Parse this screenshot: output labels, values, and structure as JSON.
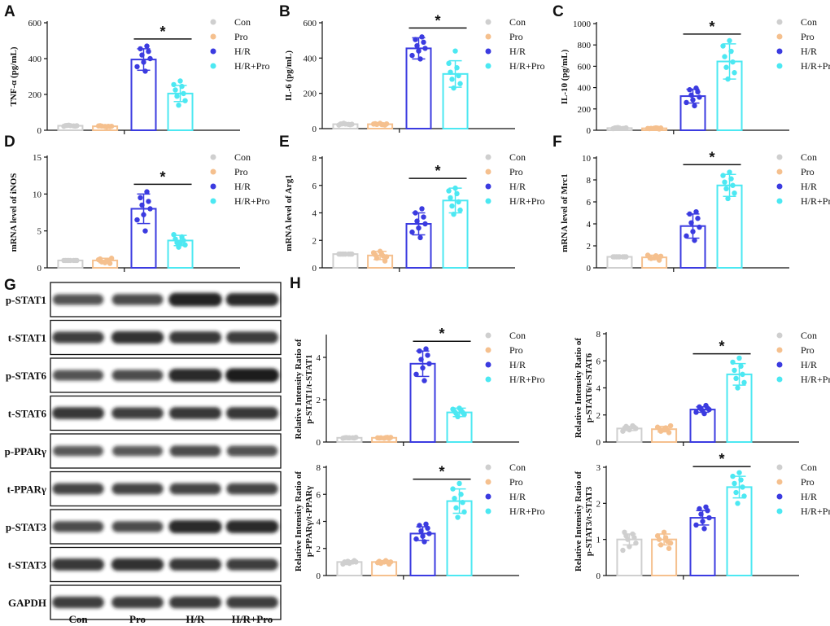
{
  "group_colors": [
    "#cfcfcf",
    "#f5c08e",
    "#3b3be0",
    "#4ce8f2"
  ],
  "chart_data": [
    {
      "id": "A",
      "type": "bar",
      "panel_label": "A",
      "ylabel": "TNF-α (pg/mL)",
      "ylim": [
        0,
        600
      ],
      "yticks": [
        "0",
        "200",
        "400",
        "600"
      ],
      "categories": [
        "Con",
        "Pro",
        "H/R",
        "H/R+Pro"
      ],
      "values": [
        25,
        22,
        395,
        205
      ],
      "errors": [
        4,
        4,
        60,
        45
      ],
      "points": [
        [
          22,
          26,
          25,
          28,
          23,
          27,
          24,
          26
        ],
        [
          20,
          23,
          22,
          25,
          19,
          24,
          21,
          22
        ],
        [
          330,
          355,
          380,
          400,
          420,
          440,
          455,
          470
        ],
        [
          140,
          165,
          190,
          205,
          225,
          245,
          255,
          275
        ]
      ],
      "legend": [
        "Con",
        "Pro",
        "H/R",
        "H/R+Pro"
      ],
      "significance": "*",
      "sig_pair": [
        2,
        3
      ]
    },
    {
      "id": "B",
      "type": "bar",
      "panel_label": "B",
      "ylabel": "IL-6 (pg/mL)",
      "ylim": [
        0,
        600
      ],
      "yticks": [
        "0",
        "200",
        "400",
        "600"
      ],
      "categories": [
        "Con",
        "Pro",
        "H/R",
        "H/R+Pro"
      ],
      "values": [
        25,
        25,
        455,
        310
      ],
      "errors": [
        5,
        5,
        60,
        75
      ],
      "points": [
        [
          20,
          26,
          25,
          30,
          22,
          27,
          24,
          26
        ],
        [
          20,
          24,
          22,
          28,
          23,
          26,
          30,
          27
        ],
        [
          395,
          415,
          440,
          455,
          470,
          490,
          505,
          520
        ],
        [
          230,
          255,
          280,
          300,
          320,
          345,
          370,
          440
        ]
      ],
      "legend": [
        "Con",
        "Pro",
        "H/R",
        "H/R+Pro"
      ],
      "significance": "*",
      "sig_pair": [
        2,
        3
      ]
    },
    {
      "id": "C",
      "type": "bar",
      "panel_label": "C",
      "ylabel": "IL-10 (pg/mL)",
      "ylim": [
        0,
        1000
      ],
      "yticks": [
        "0",
        "200",
        "400",
        "600",
        "800",
        "1000"
      ],
      "categories": [
        "Con",
        "Pro",
        "H/R",
        "H/R+Pro"
      ],
      "values": [
        20,
        18,
        320,
        645
      ],
      "errors": [
        6,
        6,
        65,
        165
      ],
      "points": [
        [
          15,
          20,
          22,
          25,
          18,
          23,
          17,
          21
        ],
        [
          12,
          18,
          20,
          15,
          22,
          17,
          19,
          21
        ],
        [
          230,
          260,
          285,
          310,
          330,
          360,
          380,
          395
        ],
        [
          480,
          540,
          590,
          640,
          690,
          740,
          790,
          840
        ]
      ],
      "legend": [
        "Con",
        "Pro",
        "H/R",
        "H/R+Pro"
      ],
      "significance": "*",
      "sig_pair": [
        2,
        3
      ]
    },
    {
      "id": "D",
      "type": "bar",
      "panel_label": "D",
      "ylabel": "mRNA level of iNOS",
      "ylim": [
        0,
        15
      ],
      "yticks": [
        "0",
        "5",
        "10",
        "15"
      ],
      "categories": [
        "Con",
        "Pro",
        "H/R",
        "H/R+Pro"
      ],
      "values": [
        1,
        1,
        8,
        3.7
      ],
      "errors": [
        0.1,
        0.3,
        2,
        0.7
      ],
      "points": [
        [
          1,
          1,
          1,
          1,
          1,
          1,
          1,
          1
        ],
        [
          0.6,
          0.8,
          1.0,
          1.2,
          0.9,
          1.1,
          0.7,
          1.3
        ],
        [
          5,
          6.5,
          7.2,
          8,
          8.5,
          9,
          9.5,
          10.3
        ],
        [
          2.8,
          3.1,
          3.4,
          3.7,
          3.9,
          4.2,
          4.5,
          3.3
        ]
      ],
      "legend": [
        "Con",
        "Pro",
        "H/R",
        "H/R+Pro"
      ],
      "significance": "*",
      "sig_pair": [
        2,
        3
      ]
    },
    {
      "id": "E",
      "type": "bar",
      "panel_label": "E",
      "ylabel": "mRNA level of Arg1",
      "ylim": [
        0,
        8
      ],
      "yticks": [
        "0",
        "2",
        "4",
        "6",
        "8"
      ],
      "categories": [
        "Con",
        "Pro",
        "H/R",
        "H/R+Pro"
      ],
      "values": [
        1,
        0.9,
        3.2,
        4.9
      ],
      "errors": [
        0.05,
        0.3,
        0.8,
        0.9
      ],
      "points": [
        [
          1,
          1,
          1,
          1,
          1,
          1,
          1,
          1
        ],
        [
          0.5,
          0.7,
          0.85,
          0.95,
          1.0,
          1.1,
          1.2,
          0.8
        ],
        [
          2.2,
          2.6,
          2.9,
          3.2,
          3.4,
          3.7,
          4.0,
          4.3
        ],
        [
          3.9,
          4.2,
          4.5,
          4.8,
          5.1,
          5.4,
          5.6,
          5.8
        ]
      ],
      "legend": [
        "Con",
        "Pro",
        "H/R",
        "H/R+Pro"
      ],
      "significance": "*",
      "sig_pair": [
        2,
        3
      ]
    },
    {
      "id": "F",
      "type": "bar",
      "panel_label": "F",
      "ylabel": "mRNA level of Mrc1",
      "ylim": [
        0,
        10
      ],
      "yticks": [
        "0",
        "2",
        "4",
        "6",
        "8",
        "10"
      ],
      "categories": [
        "Con",
        "Pro",
        "H/R",
        "H/R+Pro"
      ],
      "values": [
        1,
        0.95,
        3.8,
        7.5
      ],
      "errors": [
        0.05,
        0.2,
        1.1,
        1.0
      ],
      "points": [
        [
          1,
          1,
          1,
          1,
          1,
          1,
          1,
          1
        ],
        [
          0.7,
          0.85,
          0.95,
          1.0,
          1.1,
          1.15,
          0.9,
          1.05
        ],
        [
          2.5,
          2.9,
          3.3,
          3.7,
          4.1,
          4.5,
          4.9,
          5.1
        ],
        [
          6.3,
          6.8,
          7.2,
          7.5,
          7.8,
          8.1,
          8.4,
          8.7
        ]
      ],
      "legend": [
        "Con",
        "Pro",
        "H/R",
        "H/R+Pro"
      ],
      "significance": "*",
      "sig_pair": [
        2,
        3
      ]
    },
    {
      "id": "H1",
      "type": "bar",
      "panel_label": "H",
      "ylabel": [
        "Relative Intensity Ratio of",
        "p-STAT1/t-STAT1"
      ],
      "ylim": [
        0,
        5
      ],
      "yticks": [
        "0",
        "2",
        "4"
      ],
      "categories": [
        "Con",
        "Pro",
        "H/R",
        "H/R+Pro"
      ],
      "values": [
        0.2,
        0.2,
        3.7,
        1.4
      ],
      "errors": [
        0.03,
        0.03,
        0.6,
        0.2
      ],
      "points": [
        [
          0.18,
          0.2,
          0.22,
          0.2,
          0.19,
          0.21,
          0.2,
          0.2
        ],
        [
          0.17,
          0.2,
          0.22,
          0.19,
          0.21,
          0.2,
          0.18,
          0.22
        ],
        [
          2.9,
          3.2,
          3.5,
          3.7,
          3.9,
          4.1,
          4.3,
          4.4
        ],
        [
          1.2,
          1.3,
          1.35,
          1.4,
          1.45,
          1.5,
          1.55,
          1.6
        ]
      ],
      "legend": [
        "Con",
        "Pro",
        "H/R",
        "H/R+Pro"
      ],
      "significance": "*",
      "sig_pair": [
        2,
        3
      ]
    },
    {
      "id": "H2",
      "type": "bar",
      "panel_label": "",
      "ylabel": [
        "Relative Intensity Ratio of",
        "p-STAT6/t-STAT6"
      ],
      "ylim": [
        0,
        8
      ],
      "yticks": [
        "0",
        "2",
        "4",
        "6",
        "8"
      ],
      "categories": [
        "Con",
        "Pro",
        "H/R",
        "H/R+Pro"
      ],
      "values": [
        1,
        0.95,
        2.4,
        5
      ],
      "errors": [
        0.15,
        0.2,
        0.2,
        0.8
      ],
      "points": [
        [
          0.8,
          0.9,
          1.0,
          1.05,
          1.1,
          1.15,
          1.2,
          1.0
        ],
        [
          0.7,
          0.8,
          0.9,
          1.0,
          1.05,
          1.1,
          0.95,
          1.2
        ],
        [
          2.1,
          2.2,
          2.3,
          2.4,
          2.45,
          2.5,
          2.6,
          2.7
        ],
        [
          4.0,
          4.4,
          4.7,
          5.0,
          5.3,
          5.6,
          5.9,
          6.2
        ]
      ],
      "legend": [
        "Con",
        "Pro",
        "H/R",
        "H/R+Pro"
      ],
      "significance": "*",
      "sig_pair": [
        2,
        3
      ]
    },
    {
      "id": "H3",
      "type": "bar",
      "panel_label": "",
      "ylabel": [
        "Relative Intensity Ratio of",
        "p-PPARγ/t-PPARγ"
      ],
      "ylim": [
        0,
        8
      ],
      "yticks": [
        "0",
        "2",
        "4",
        "6",
        "8"
      ],
      "categories": [
        "Con",
        "Pro",
        "H/R",
        "H/R+Pro"
      ],
      "values": [
        1,
        1,
        3.1,
        5.5
      ],
      "errors": [
        0.1,
        0.1,
        0.5,
        0.9
      ],
      "points": [
        [
          0.85,
          0.9,
          1.0,
          1.05,
          1.1,
          0.95,
          1.0,
          1.0
        ],
        [
          0.85,
          0.9,
          1.0,
          1.05,
          1.1,
          0.95,
          1.0,
          1.0
        ],
        [
          2.5,
          2.7,
          2.9,
          3.1,
          3.3,
          3.5,
          3.7,
          3.8
        ],
        [
          4.3,
          4.7,
          5.0,
          5.4,
          5.7,
          6.0,
          6.4,
          6.8
        ]
      ],
      "legend": [
        "Con",
        "Pro",
        "H/R",
        "H/R+Pro"
      ],
      "significance": "*",
      "sig_pair": [
        2,
        3
      ]
    },
    {
      "id": "H4",
      "type": "bar",
      "panel_label": "",
      "ylabel": [
        "Relative Intensity Ratio of",
        "p-STAT3/t-STAT3"
      ],
      "ylim": [
        0,
        3
      ],
      "yticks": [
        "0",
        "1",
        "2",
        "3"
      ],
      "categories": [
        "Con",
        "Pro",
        "H/R",
        "H/R+Pro"
      ],
      "values": [
        1,
        1,
        1.6,
        2.45
      ],
      "errors": [
        0.15,
        0.15,
        0.2,
        0.3
      ],
      "points": [
        [
          0.7,
          0.8,
          0.9,
          1.0,
          1.05,
          1.1,
          1.15,
          1.2
        ],
        [
          0.75,
          0.85,
          0.95,
          1.0,
          1.05,
          1.1,
          1.2,
          0.9
        ],
        [
          1.3,
          1.4,
          1.5,
          1.6,
          1.7,
          1.8,
          1.85,
          1.9
        ],
        [
          2.0,
          2.2,
          2.3,
          2.45,
          2.55,
          2.65,
          2.75,
          2.85
        ]
      ],
      "legend": [
        "Con",
        "Pro",
        "H/R",
        "H/R+Pro"
      ],
      "significance": "*",
      "sig_pair": [
        2,
        3
      ]
    }
  ],
  "western_blot": {
    "panel_label": "G",
    "rows": [
      "p-STAT1",
      "t-STAT1",
      "p-STAT6",
      "t-STAT6",
      "p-PPARγ",
      "t-PPARγ",
      "p-STAT3",
      "t-STAT3",
      "GAPDH"
    ],
    "lanes": [
      "Con",
      "Pro",
      "H/R",
      "H/R+Pro"
    ],
    "intensity": [
      [
        0.55,
        0.6,
        0.95,
        0.85
      ],
      [
        0.7,
        0.8,
        0.75,
        0.72
      ],
      [
        0.55,
        0.6,
        0.9,
        1.0
      ],
      [
        0.75,
        0.7,
        0.75,
        0.75
      ],
      [
        0.5,
        0.5,
        0.6,
        0.55
      ],
      [
        0.65,
        0.65,
        0.65,
        0.65
      ],
      [
        0.6,
        0.6,
        0.9,
        0.85
      ],
      [
        0.75,
        0.8,
        0.75,
        0.7
      ],
      [
        0.7,
        0.7,
        0.72,
        0.7
      ]
    ]
  }
}
